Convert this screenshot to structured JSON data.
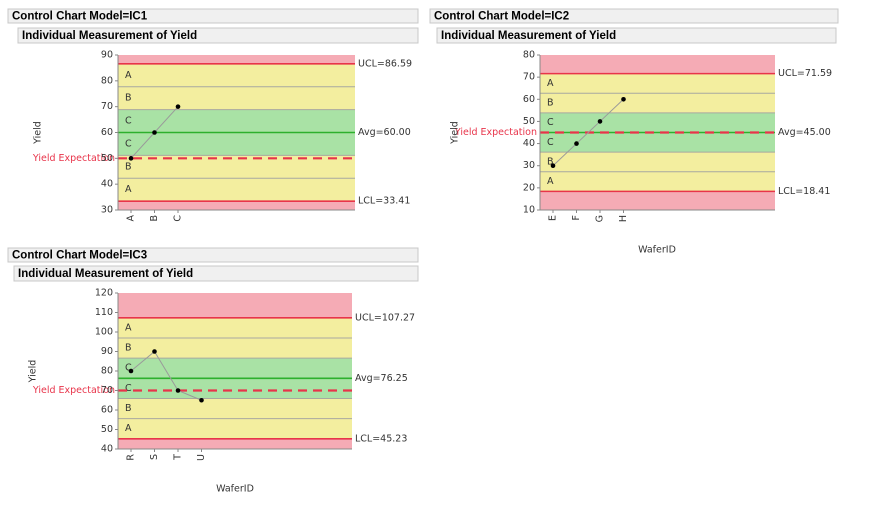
{
  "chart_data": [
    {
      "type": "line",
      "title": "Control Chart Model=IC1",
      "subtitle": "Individual Measurement of Yield",
      "y_label": "Yield",
      "categories": [
        "A",
        "B",
        "C"
      ],
      "values": [
        50,
        60,
        70
      ],
      "color": "#000000",
      "line_color": "#9a9a9a",
      "ylim": [
        30,
        90
      ],
      "yticks": [
        30,
        40,
        50,
        60,
        70,
        80,
        90
      ],
      "ucl": {
        "value": 86.59,
        "label": "UCL=86.59"
      },
      "avg": {
        "value": 60.0,
        "label": "Avg=60.00"
      },
      "lcl": {
        "value": 33.41,
        "label": "LCL=33.41"
      },
      "reference": {
        "value": 50,
        "label": "Yield Expectation",
        "color": "#e8344a"
      },
      "zone_labels": [
        "A",
        "B",
        "C",
        "C",
        "B",
        "A"
      ],
      "zone_colors": [
        "#f5abb5",
        "#f3ee9f",
        "#a9e2a5"
      ],
      "limit_color": "#e8344a",
      "center_color": "#2db02d"
    },
    {
      "type": "line",
      "title": "Control Chart Model=IC2",
      "subtitle": "Individual Measurement of Yield",
      "y_label": "Yield",
      "x_label": "WaferID",
      "categories": [
        "E",
        "F",
        "G",
        "H"
      ],
      "values": [
        30,
        40,
        50,
        60
      ],
      "color": "#000000",
      "line_color": "#9a9a9a",
      "ylim": [
        10,
        80
      ],
      "yticks": [
        10,
        20,
        30,
        40,
        50,
        60,
        70,
        80
      ],
      "ucl": {
        "value": 71.59,
        "label": "UCL=71.59"
      },
      "avg": {
        "value": 45.0,
        "label": "Avg=45.00"
      },
      "lcl": {
        "value": 18.41,
        "label": "LCL=18.41"
      },
      "reference": {
        "value": 45,
        "label": "Yield Expectation",
        "color": "#e8344a"
      },
      "zone_labels": [
        "A",
        "B",
        "C",
        "C",
        "B",
        "A"
      ],
      "zone_colors": [
        "#f5abb5",
        "#f3ee9f",
        "#a9e2a5"
      ],
      "limit_color": "#e8344a",
      "center_color": "#2db02d"
    },
    {
      "type": "line",
      "title": "Control Chart Model=IC3",
      "subtitle": "Individual Measurement of Yield",
      "y_label": "Yield",
      "x_label": "WaferID",
      "categories": [
        "R",
        "S",
        "T",
        "U"
      ],
      "values": [
        80,
        90,
        70,
        65
      ],
      "color": "#000000",
      "line_color": "#9a9a9a",
      "ylim": [
        40,
        120
      ],
      "yticks": [
        40,
        50,
        60,
        70,
        80,
        90,
        100,
        110,
        120
      ],
      "ucl": {
        "value": 107.27,
        "label": "UCL=107.27"
      },
      "avg": {
        "value": 76.25,
        "label": "Avg=76.25"
      },
      "lcl": {
        "value": 45.23,
        "label": "LCL=45.23"
      },
      "reference": {
        "value": 70,
        "label": "Yield Expectation",
        "color": "#e8344a"
      },
      "zone_labels": [
        "A",
        "B",
        "C",
        "C",
        "B",
        "A"
      ],
      "zone_colors": [
        "#f5abb5",
        "#f3ee9f",
        "#a9e2a5"
      ],
      "limit_color": "#e8344a",
      "center_color": "#2db02d"
    }
  ]
}
